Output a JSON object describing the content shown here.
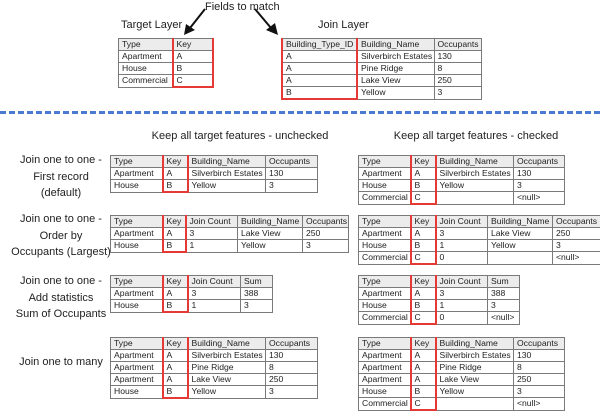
{
  "top": {
    "fields_to_match": "Fields to match",
    "target_layer_label": "Target Layer",
    "join_layer_label": "Join Layer"
  },
  "columns": {
    "unchecked": "Keep all target features - unchecked",
    "checked": "Keep all target features - checked"
  },
  "row_labels": [
    [
      "Join one to one -",
      "First record",
      "(default)"
    ],
    [
      "Join one to one -",
      "Order by",
      "Occupants (Largest)"
    ],
    [
      "Join one to one -",
      "Add statistics",
      "Sum of Occupants"
    ],
    [
      "Join one to many"
    ]
  ],
  "colors": {
    "highlight": "#e53935",
    "divider": "#4a7bd0",
    "header_bg": "#ececec"
  },
  "tables": {
    "target": {
      "key": 1,
      "header": [
        "Type",
        "Key"
      ],
      "rows": [
        [
          "Apartment",
          "A"
        ],
        [
          "House",
          "B"
        ],
        [
          "Commercial",
          "C"
        ]
      ]
    },
    "join": {
      "key": 0,
      "header": [
        "Building_Type_ID",
        "Building_Name",
        "Occupants"
      ],
      "rows": [
        [
          "A",
          "Silverbirch Estates",
          "130"
        ],
        [
          "A",
          "Pine Ridge",
          "8"
        ],
        [
          "A",
          "Lake View",
          "250"
        ],
        [
          "B",
          "Yellow",
          "3"
        ]
      ]
    },
    "first_unchecked": {
      "key": 1,
      "header": [
        "Type",
        "Key",
        "Building_Name",
        "Occupants"
      ],
      "rows": [
        [
          "Apartment",
          "A",
          "Silverbirch Estates",
          "130"
        ],
        [
          "House",
          "B",
          "Yellow",
          "3"
        ]
      ]
    },
    "first_checked": {
      "key": 1,
      "header": [
        "Type",
        "Key",
        "Building_Name",
        "Occupants"
      ],
      "rows": [
        [
          "Apartment",
          "A",
          "Silverbirch Estates",
          "130"
        ],
        [
          "House",
          "B",
          "Yellow",
          "3"
        ],
        [
          "Commercial",
          "C",
          "",
          "<null>"
        ]
      ]
    },
    "order_unchecked": {
      "key": 1,
      "header": [
        "Type",
        "Key",
        "Join Count",
        "Building_Name",
        "Occupants"
      ],
      "rows": [
        [
          "Apartment",
          "A",
          "3",
          "Lake View",
          "250"
        ],
        [
          "House",
          "B",
          "1",
          "Yellow",
          "3"
        ]
      ]
    },
    "order_checked": {
      "key": 1,
      "header": [
        "Type",
        "Key",
        "Join Count",
        "Building_Name",
        "Occupants"
      ],
      "rows": [
        [
          "Apartment",
          "A",
          "3",
          "Lake View",
          "250"
        ],
        [
          "House",
          "B",
          "1",
          "Yellow",
          "3"
        ],
        [
          "Commercial",
          "C",
          "0",
          "",
          "<null>"
        ]
      ]
    },
    "stats_unchecked": {
      "key": 1,
      "header": [
        "Type",
        "Key",
        "Join Count",
        "Sum"
      ],
      "rows": [
        [
          "Apartment",
          "A",
          "3",
          "388"
        ],
        [
          "House",
          "B",
          "1",
          "3"
        ]
      ]
    },
    "stats_checked": {
      "key": 1,
      "header": [
        "Type",
        "Key",
        "Join Count",
        "Sum"
      ],
      "rows": [
        [
          "Apartment",
          "A",
          "3",
          "388"
        ],
        [
          "House",
          "B",
          "1",
          "3"
        ],
        [
          "Commercial",
          "C",
          "0",
          "<null>"
        ]
      ]
    },
    "many_unchecked": {
      "key": 1,
      "header": [
        "Type",
        "Key",
        "Building_Name",
        "Occupants"
      ],
      "rows": [
        [
          "Apartment",
          "A",
          "Silverbirch Estates",
          "130"
        ],
        [
          "Apartment",
          "A",
          "Pine Ridge",
          "8"
        ],
        [
          "Apartment",
          "A",
          "Lake View",
          "250"
        ],
        [
          "House",
          "B",
          "Yellow",
          "3"
        ]
      ]
    },
    "many_checked": {
      "key": 1,
      "header": [
        "Type",
        "Key",
        "Building_Name",
        "Occupants"
      ],
      "rows": [
        [
          "Apartment",
          "A",
          "Silverbirch Estates",
          "130"
        ],
        [
          "Apartment",
          "A",
          "Pine Ridge",
          "8"
        ],
        [
          "Apartment",
          "A",
          "Lake View",
          "250"
        ],
        [
          "House",
          "B",
          "Yellow",
          "3"
        ],
        [
          "Commercial",
          "C",
          "",
          "<null>"
        ]
      ]
    }
  }
}
